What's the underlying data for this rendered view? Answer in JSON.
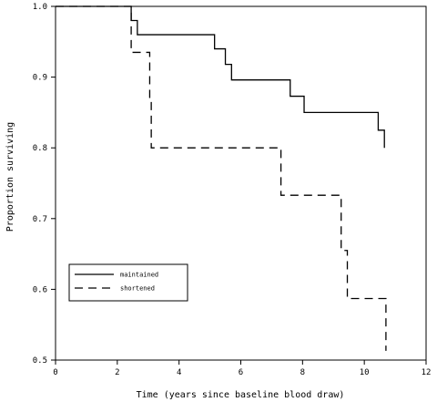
{
  "chart_data": {
    "type": "line",
    "subtype": "kaplan-meier step curve",
    "xlabel": "Time (years since baseline blood draw)",
    "ylabel": "Proportion surviving",
    "xlim": [
      0,
      12
    ],
    "ylim": [
      0.5,
      1.0
    ],
    "xticks": [
      "0",
      "2",
      "4",
      "6",
      "8",
      "10",
      "12"
    ],
    "yticks": [
      "0.5",
      "0.6",
      "0.7",
      "0.8",
      "0.9",
      "1.0"
    ],
    "grid": false,
    "legend_position": "bottom-left",
    "series": [
      {
        "name": "maintained",
        "line_style": "solid",
        "color": "#000000",
        "steps": [
          [
            0,
            1.0
          ],
          [
            2.45,
            0.98
          ],
          [
            2.65,
            0.96
          ],
          [
            5.15,
            0.94
          ],
          [
            5.5,
            0.918
          ],
          [
            5.7,
            0.896
          ],
          [
            7.6,
            0.873
          ],
          [
            8.05,
            0.85
          ],
          [
            10.45,
            0.825
          ],
          [
            10.65,
            0.8
          ]
        ]
      },
      {
        "name": "shortened",
        "line_style": "dashed",
        "color": "#000000",
        "steps": [
          [
            0,
            1.0
          ],
          [
            2.45,
            0.935
          ],
          [
            3.05,
            0.867
          ],
          [
            3.1,
            0.8
          ],
          [
            7.3,
            0.733
          ],
          [
            9.25,
            0.655
          ],
          [
            9.45,
            0.587
          ],
          [
            10.7,
            0.513
          ]
        ]
      }
    ]
  }
}
